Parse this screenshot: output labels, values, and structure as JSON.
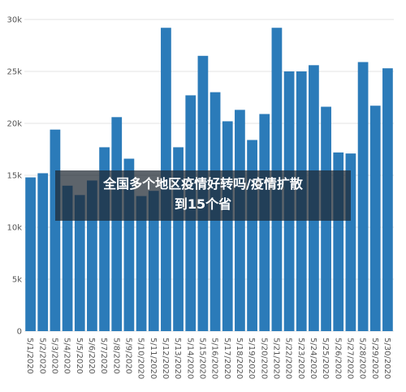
{
  "chart_data": {
    "type": "bar",
    "categories": [
      "5/1/2020",
      "5/2/2020",
      "5/3/2020",
      "5/4/2020",
      "5/5/2020",
      "5/6/2020",
      "5/7/2020",
      "5/8/2020",
      "5/9/2020",
      "5/10/2020",
      "5/11/2020",
      "5/12/2020",
      "5/13/2020",
      "5/14/2020",
      "5/15/2020",
      "5/16/2020",
      "5/17/2020",
      "5/18/2020",
      "5/19/2020",
      "5/20/2020",
      "5/21/2020",
      "5/22/2020",
      "5/23/2020",
      "5/24/2020",
      "5/25/2020",
      "5/26/2020",
      "5/27/2020",
      "5/28/2020",
      "5/29/2020",
      "5/30/2020"
    ],
    "values": [
      14800,
      15200,
      19400,
      14000,
      13100,
      14500,
      17700,
      20600,
      16600,
      13000,
      13500,
      29200,
      17700,
      22700,
      26500,
      23000,
      20200,
      21300,
      18400,
      20900,
      29200,
      25000,
      25000,
      25600,
      21600,
      17200,
      17100,
      25900,
      21700,
      25300
    ],
    "color": "#2b7bb9",
    "ylim": [
      0,
      30000
    ],
    "yticks": [
      {
        "value": 0,
        "label": "0"
      },
      {
        "value": 5000,
        "label": "5k"
      },
      {
        "value": 10000,
        "label": "10k"
      },
      {
        "value": 15000,
        "label": "15k"
      },
      {
        "value": 20000,
        "label": "20k"
      },
      {
        "value": 25000,
        "label": "25k"
      },
      {
        "value": 30000,
        "label": "30k"
      }
    ],
    "grid": true
  },
  "overlay": {
    "lines": [
      "全国多个地区疫情好转吗/疫情扩散",
      "到15个省"
    ]
  }
}
